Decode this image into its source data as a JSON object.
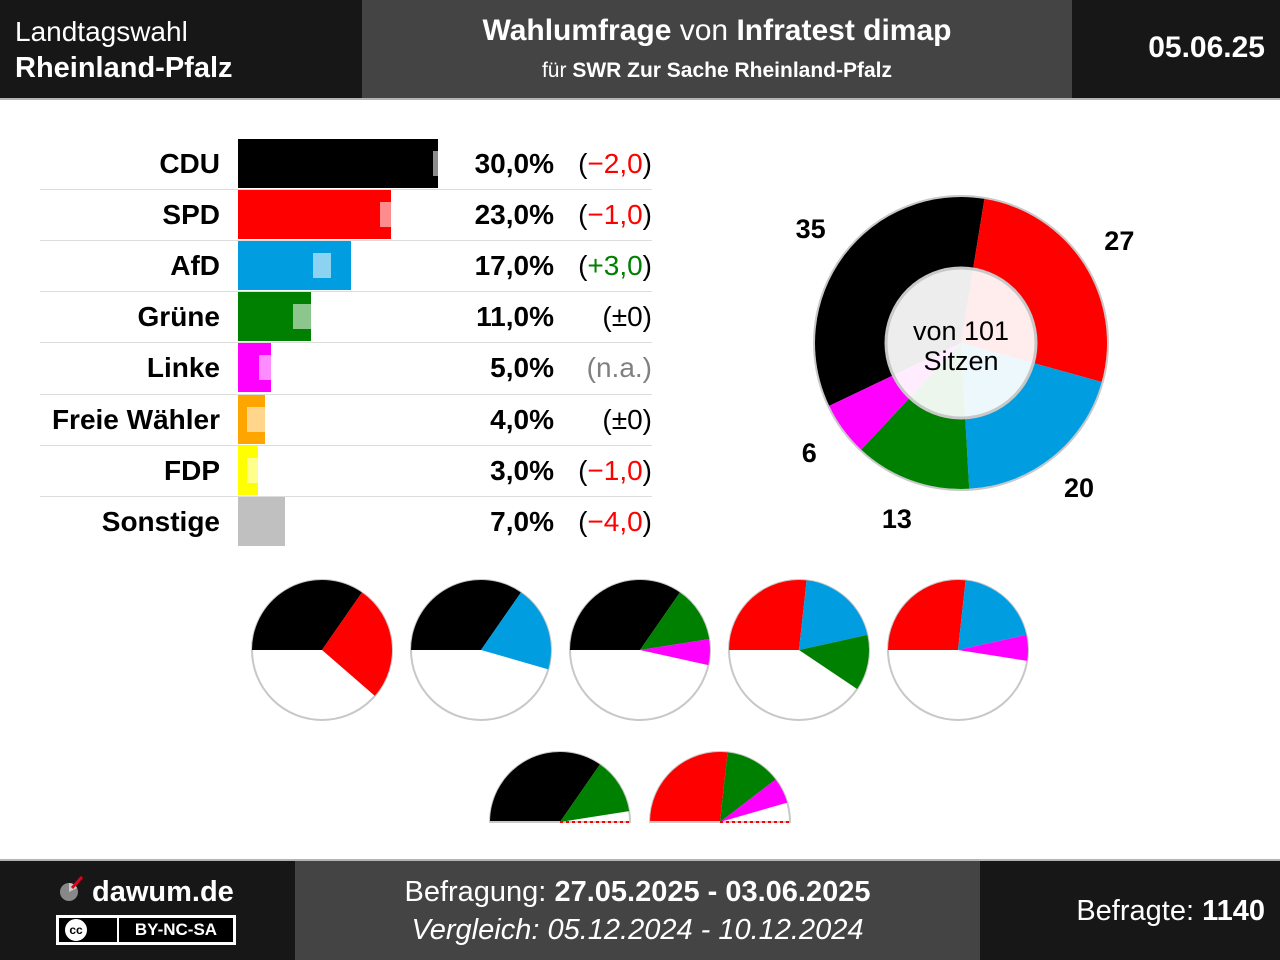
{
  "header": {
    "election_type": "Landtagswahl",
    "region": "Rheinland-Pfalz",
    "title_part1": "Wahlumfrage",
    "title_part2": " von ",
    "title_part3": "Infratest dimap",
    "subtitle_part1": "für ",
    "subtitle_part2": "SWR Zur Sache Rheinland-Pfalz",
    "date": "05.06.25"
  },
  "footer": {
    "site": "dawum.de",
    "license": "BY-NC-SA",
    "license_cc": "cc",
    "survey_label": "Befragung: ",
    "survey_period": "27.05.2025 - 03.06.2025",
    "comparison_label": "Vergleich: ",
    "comparison_period": "05.12.2024 - 10.12.2024",
    "respondents_label": "Befragte: ",
    "respondents_value": "1140"
  },
  "chart_data": [
    {
      "type": "bar",
      "categories": [
        "CDU",
        "SPD",
        "AfD",
        "Grüne",
        "Linke",
        "Freie Wähler",
        "FDP",
        "Sonstige"
      ],
      "values": [
        30.0,
        23.0,
        17.0,
        11.0,
        5.0,
        4.0,
        3.0,
        7.0
      ],
      "previous_values": [
        32.0,
        24.0,
        14.0,
        11.0,
        null,
        4.0,
        4.0,
        11.0
      ],
      "value_labels": [
        "30,0%",
        "23,0%",
        "17,0%",
        "11,0%",
        "5,0%",
        "4,0%",
        "3,0%",
        "7,0%"
      ],
      "change_labels": [
        "(−2,0)",
        "(−1,0)",
        "(+3,0)",
        "(±0)",
        "(n.a.)",
        "(±0)",
        "(−1,0)",
        "(−4,0)"
      ],
      "change_colors": [
        "#ff0000",
        "#ff0000",
        "#008000",
        "#000000",
        "#808080",
        "#000000",
        "#ff0000",
        "#ff0000"
      ],
      "colors": [
        "#000000",
        "#ff0000",
        "#009ee0",
        "#008000",
        "#ff00ff",
        "#ffa500",
        "#ffff00",
        "#c0c0c0"
      ]
    },
    {
      "type": "pie",
      "style": "donut",
      "labels": [
        "CDU",
        "SPD",
        "AfD",
        "Grüne",
        "Linke"
      ],
      "values": [
        35,
        27,
        20,
        13,
        6
      ],
      "colors": [
        "#000000",
        "#ff0000",
        "#009ee0",
        "#008000",
        "#ff00ff"
      ],
      "center_line1": "von 101",
      "center_line2": "Sitzen"
    },
    {
      "type": "pie",
      "style": "coalitions",
      "total_seats": 101,
      "coalitions": [
        {
          "parties": [
            "CDU",
            "SPD"
          ],
          "seats": [
            35,
            27
          ],
          "colors": [
            "#000000",
            "#ff0000"
          ]
        },
        {
          "parties": [
            "CDU",
            "AfD"
          ],
          "seats": [
            35,
            20
          ],
          "colors": [
            "#000000",
            "#009ee0"
          ]
        },
        {
          "parties": [
            "CDU",
            "Grüne",
            "Linke"
          ],
          "seats": [
            35,
            13,
            6
          ],
          "colors": [
            "#000000",
            "#008000",
            "#ff00ff"
          ]
        },
        {
          "parties": [
            "SPD",
            "AfD",
            "Grüne"
          ],
          "seats": [
            27,
            20,
            13
          ],
          "colors": [
            "#ff0000",
            "#009ee0",
            "#008000"
          ]
        },
        {
          "parties": [
            "SPD",
            "AfD",
            "Linke"
          ],
          "seats": [
            27,
            20,
            6
          ],
          "colors": [
            "#ff0000",
            "#009ee0",
            "#ff00ff"
          ]
        }
      ],
      "short_of_majority": [
        {
          "parties": [
            "CDU",
            "Grüne"
          ],
          "seats": [
            35,
            13
          ],
          "colors": [
            "#000000",
            "#008000"
          ]
        },
        {
          "parties": [
            "SPD",
            "Grüne",
            "Linke"
          ],
          "seats": [
            27,
            13,
            6
          ],
          "colors": [
            "#ff0000",
            "#008000",
            "#ff00ff"
          ]
        }
      ]
    }
  ]
}
